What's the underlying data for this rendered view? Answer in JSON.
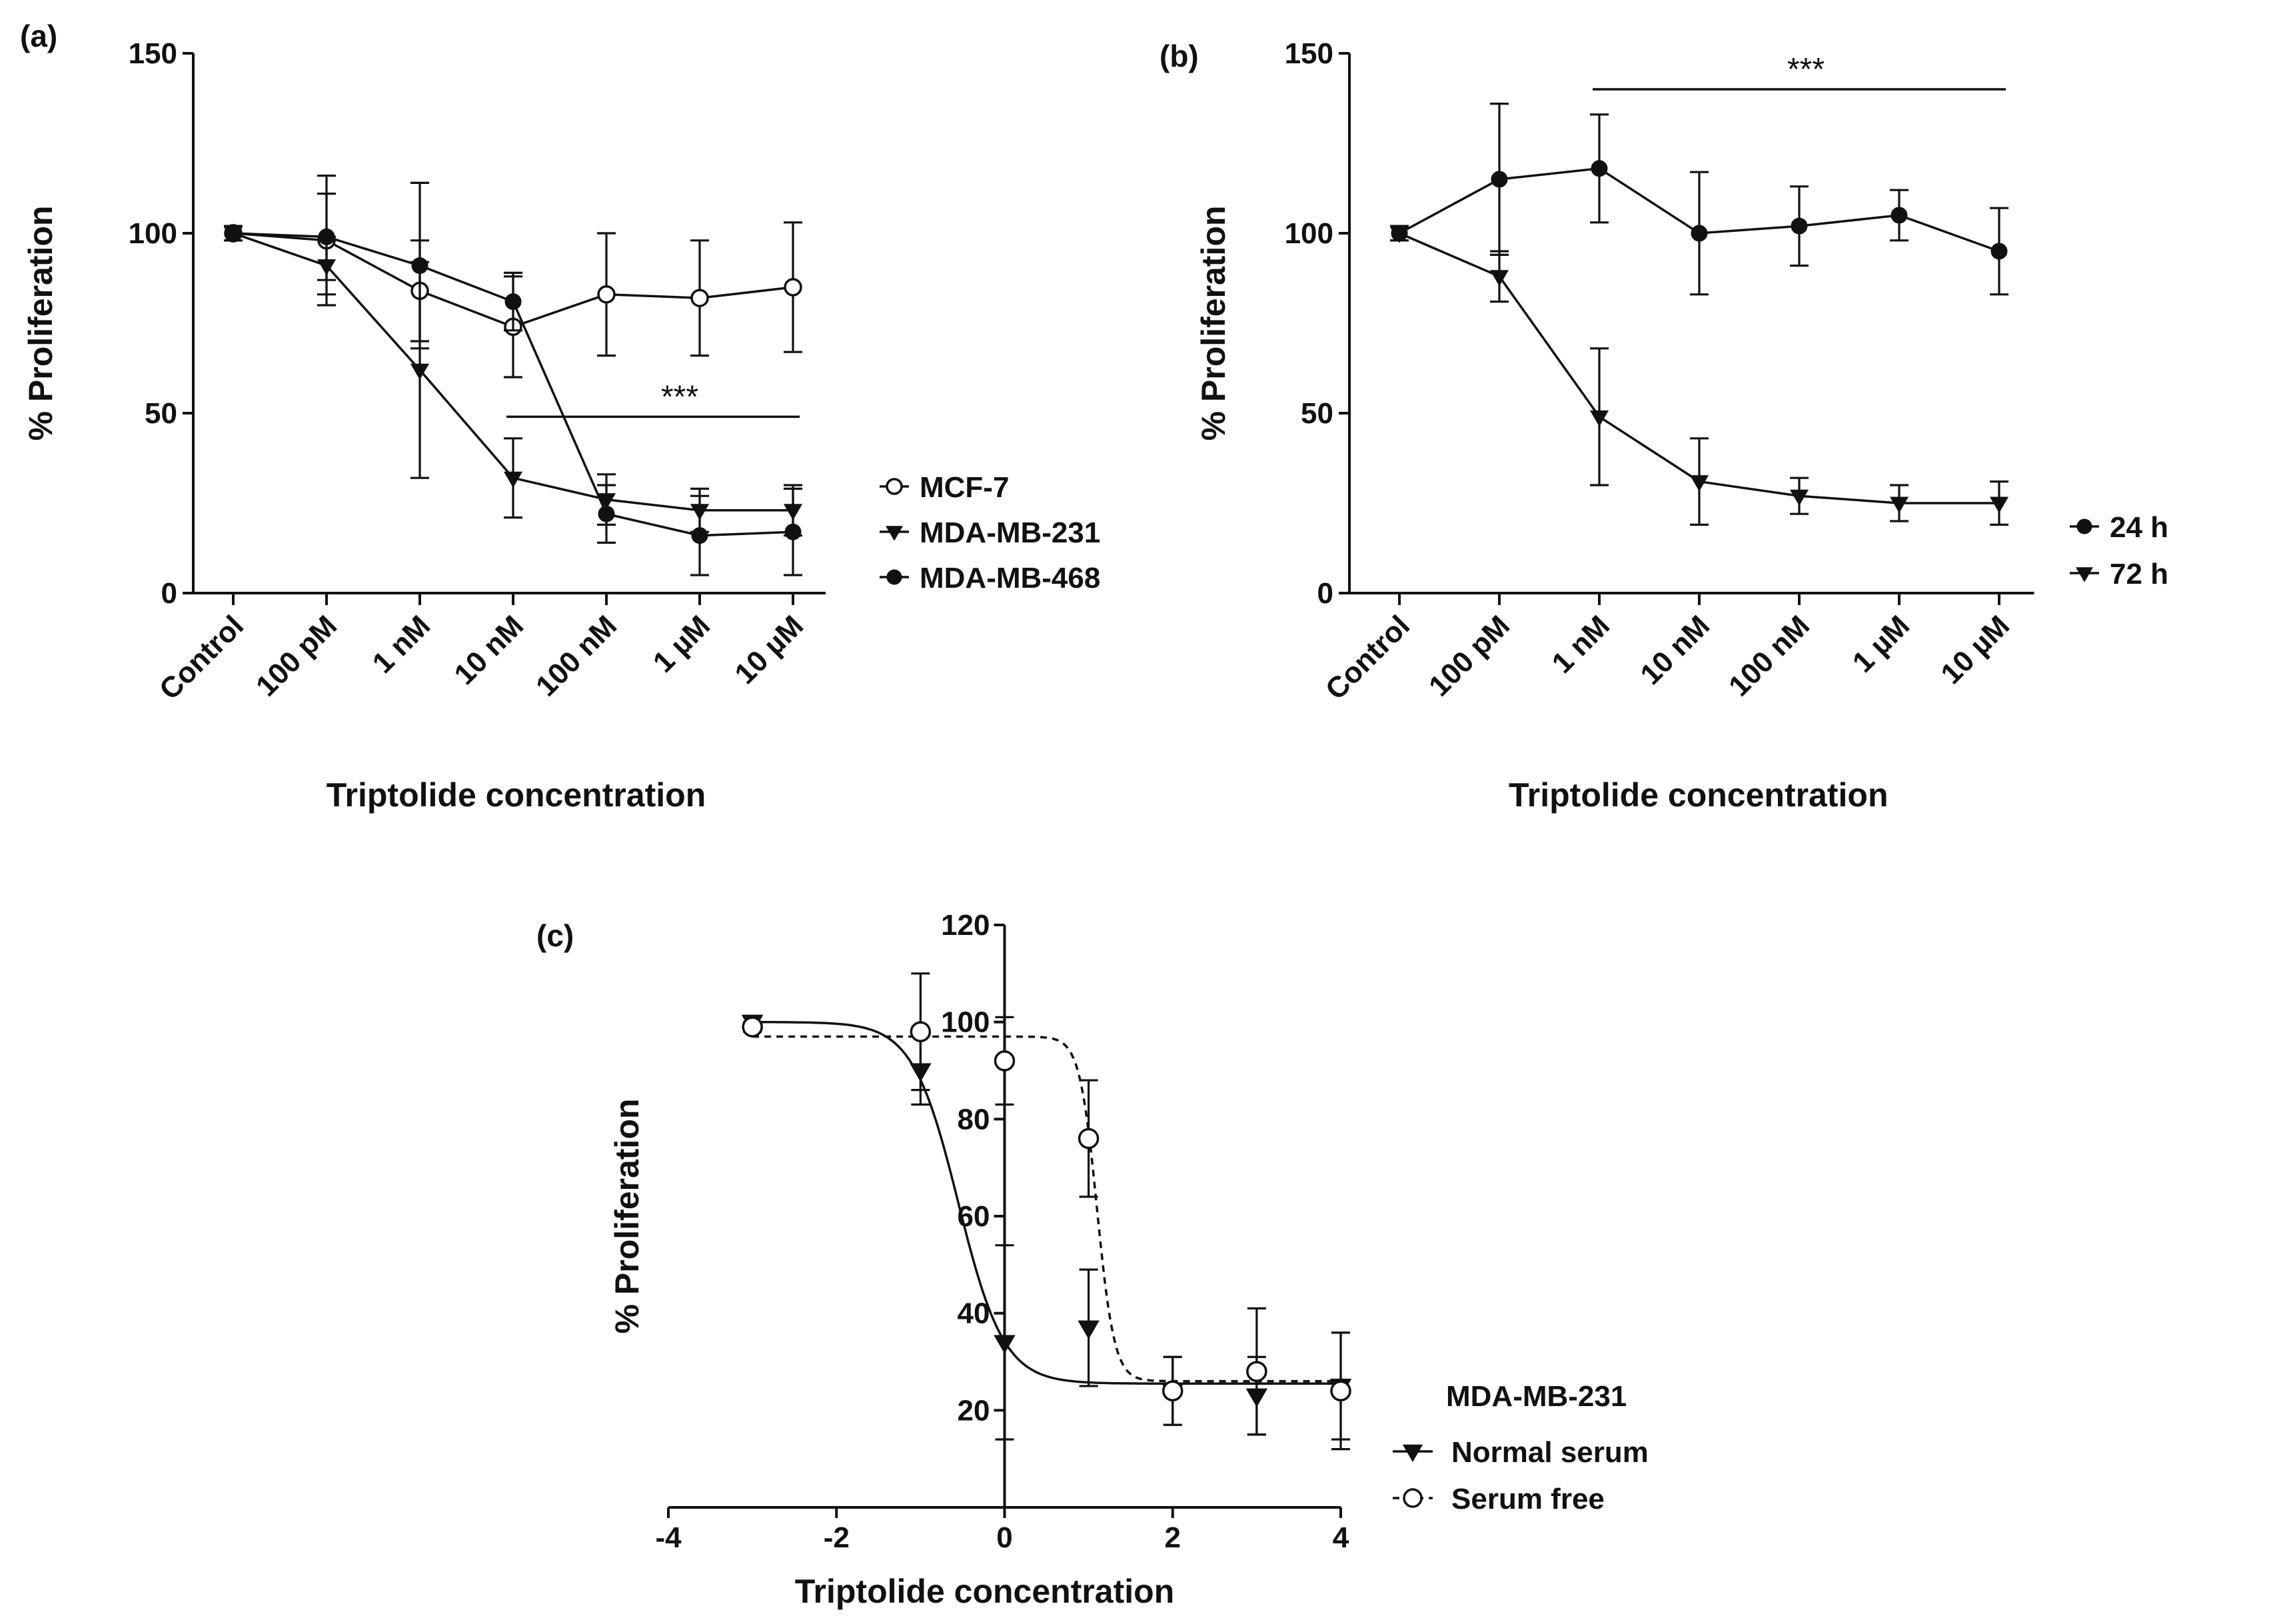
{
  "chart_data": [
    {
      "panel": "(a)",
      "type": "line",
      "xlabel": "Triptolide concentration",
      "ylabel": "% Proliferation",
      "categories": [
        "Control",
        "100 pM",
        "1 nM",
        "10 nM",
        "100 nM",
        "1 µM",
        "10 µM"
      ],
      "ylim": [
        0,
        150
      ],
      "yticks": [
        0,
        50,
        100,
        150
      ],
      "legend_position": "right",
      "significance": {
        "label": "***",
        "from_category": "10 nM",
        "to_category": "10 µM",
        "y": 49
      },
      "series": [
        {
          "name": "MCF-7",
          "marker": "circle-open",
          "values": [
            100,
            98,
            84,
            74,
            83,
            82,
            85
          ],
          "error": [
            2,
            18,
            14,
            14,
            17,
            16,
            18
          ]
        },
        {
          "name": "MDA-MB-231",
          "marker": "triangle-down",
          "values": [
            100,
            91,
            62,
            32,
            26,
            23,
            23
          ],
          "error": [
            2,
            8,
            30,
            11,
            7,
            6,
            7
          ]
        },
        {
          "name": "MDA-MB-468",
          "marker": "circle-filled",
          "values": [
            100,
            99,
            91,
            81,
            22,
            16,
            17
          ],
          "error": [
            2,
            12,
            23,
            8,
            8,
            11,
            12
          ]
        }
      ]
    },
    {
      "panel": "(b)",
      "type": "line",
      "xlabel": "Triptolide concentration",
      "ylabel": "% Proliferation",
      "categories": [
        "Control",
        "100 pM",
        "1 nM",
        "10 nM",
        "100 nM",
        "1 µM",
        "10 µM"
      ],
      "ylim": [
        0,
        150
      ],
      "yticks": [
        0,
        50,
        100,
        150
      ],
      "legend_position": "right",
      "significance": {
        "label": "***",
        "from_category": "1 nM",
        "to_category": "10 µM",
        "y": 140
      },
      "series": [
        {
          "name": "24 h",
          "marker": "circle-filled",
          "values": [
            100,
            115,
            118,
            100,
            102,
            105,
            95
          ],
          "error": [
            2,
            21,
            15,
            17,
            11,
            7,
            12
          ]
        },
        {
          "name": "72 h",
          "marker": "triangle-down",
          "values": [
            100,
            88,
            49,
            31,
            27,
            25,
            25
          ],
          "error": [
            2,
            7,
            19,
            12,
            5,
            5,
            6
          ]
        }
      ]
    },
    {
      "panel": "(c)",
      "type": "scatter",
      "xlabel": "Triptolide concentration",
      "ylabel": "% Proliferation",
      "xlim": [
        -4,
        4
      ],
      "xticks": [
        -4,
        -2,
        0,
        2,
        4
      ],
      "ylim": [
        0,
        120
      ],
      "yticks": [
        20,
        40,
        60,
        80,
        100,
        120
      ],
      "legend_title": "MDA-MB-231",
      "legend_position": "right",
      "series": [
        {
          "name": "Normal serum",
          "marker": "triangle-down",
          "line_style": "solid",
          "x": [
            -3,
            -1,
            0,
            1,
            2,
            3,
            4
          ],
          "y": [
            100,
            90,
            34,
            37,
            24,
            23,
            25
          ],
          "error": [
            1,
            7,
            20,
            12,
            7,
            8,
            11
          ],
          "fit": {
            "top": 100,
            "bottom": 25.5,
            "log_ec50": -0.55,
            "hill": 1.6
          }
        },
        {
          "name": "Serum free",
          "marker": "circle-open",
          "line_style": "dashed",
          "x": [
            -3,
            -1,
            0,
            1,
            2,
            3,
            4
          ],
          "y": [
            99,
            98,
            92,
            76,
            24,
            28,
            24
          ],
          "error": [
            1,
            12,
            9,
            12,
            7,
            13,
            12
          ],
          "fit": {
            "top": 97,
            "bottom": 26,
            "log_ec50": 1.1,
            "hill": 4.2
          }
        }
      ]
    }
  ]
}
